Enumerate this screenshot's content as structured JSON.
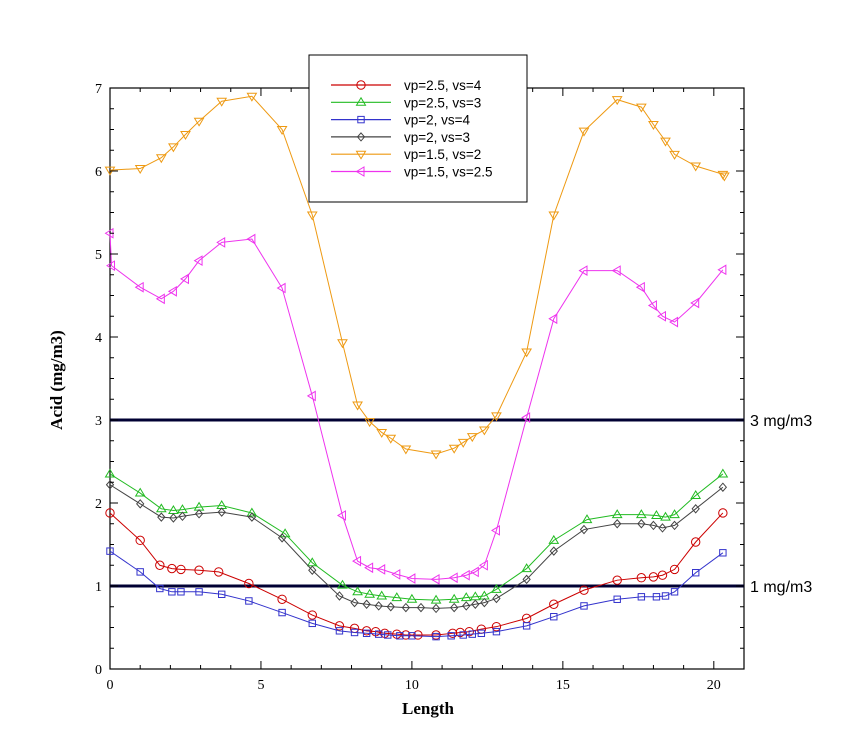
{
  "chart_data": {
    "type": "line",
    "title": "",
    "xlabel": "Length",
    "ylabel": "Acid (mg/m3)",
    "xlim": [
      0,
      21
    ],
    "ylim": [
      0,
      7
    ],
    "xticks": [
      "0",
      "5",
      "10",
      "15",
      "20"
    ],
    "yticks": [
      "0",
      "1",
      "2",
      "3",
      "4",
      "5",
      "6",
      "7"
    ],
    "reference_lines": [
      {
        "value": 3,
        "label": "3 mg/m3"
      },
      {
        "value": 1,
        "label": "1 mg/m3"
      }
    ],
    "series": [
      {
        "name": "vp=2.5, vs=4",
        "color": "#cc0000",
        "marker": "circle",
        "points": [
          [
            0,
            1.88
          ],
          [
            1,
            1.55
          ],
          [
            1.65,
            1.25
          ],
          [
            2.05,
            1.21
          ],
          [
            2.35,
            1.2
          ],
          [
            2.95,
            1.19
          ],
          [
            3.6,
            1.17
          ],
          [
            4.6,
            1.03
          ],
          [
            5.7,
            0.84
          ],
          [
            6.7,
            0.65
          ],
          [
            7.6,
            0.52
          ],
          [
            8.1,
            0.49
          ],
          [
            8.5,
            0.46
          ],
          [
            8.8,
            0.45
          ],
          [
            9.1,
            0.43
          ],
          [
            9.5,
            0.42
          ],
          [
            9.8,
            0.41
          ],
          [
            10.2,
            0.41
          ],
          [
            10.8,
            0.41
          ],
          [
            11.35,
            0.43
          ],
          [
            11.6,
            0.44
          ],
          [
            11.9,
            0.45
          ],
          [
            12.3,
            0.48
          ],
          [
            12.8,
            0.51
          ],
          [
            13.8,
            0.61
          ],
          [
            14.7,
            0.78
          ],
          [
            15.7,
            0.95
          ],
          [
            16.8,
            1.07
          ],
          [
            17.6,
            1.1
          ],
          [
            18,
            1.11
          ],
          [
            18.3,
            1.13
          ],
          [
            18.7,
            1.2
          ],
          [
            19.4,
            1.53
          ],
          [
            20.3,
            1.88
          ]
        ]
      },
      {
        "name": "vp=2.5, vs=3",
        "color": "#22bb22",
        "marker": "triangle-up",
        "points": [
          [
            0,
            2.35
          ],
          [
            1,
            2.12
          ],
          [
            1.7,
            1.93
          ],
          [
            2.1,
            1.91
          ],
          [
            2.4,
            1.92
          ],
          [
            2.95,
            1.95
          ],
          [
            3.7,
            1.97
          ],
          [
            4.7,
            1.88
          ],
          [
            5.8,
            1.63
          ],
          [
            6.7,
            1.28
          ],
          [
            7.7,
            1.01
          ],
          [
            8.2,
            0.93
          ],
          [
            8.6,
            0.9
          ],
          [
            9,
            0.88
          ],
          [
            9.5,
            0.86
          ],
          [
            10,
            0.84
          ],
          [
            10.8,
            0.83
          ],
          [
            11.4,
            0.84
          ],
          [
            11.8,
            0.86
          ],
          [
            12.1,
            0.87
          ],
          [
            12.4,
            0.88
          ],
          [
            12.8,
            0.96
          ],
          [
            13.8,
            1.21
          ],
          [
            14.7,
            1.55
          ],
          [
            15.8,
            1.8
          ],
          [
            16.8,
            1.86
          ],
          [
            17.6,
            1.86
          ],
          [
            18.1,
            1.85
          ],
          [
            18.4,
            1.83
          ],
          [
            18.7,
            1.86
          ],
          [
            19.4,
            2.09
          ],
          [
            20.3,
            2.35
          ]
        ]
      },
      {
        "name": "vp=2, vs=4",
        "color": "#3333cc",
        "marker": "square",
        "points": [
          [
            0,
            1.42
          ],
          [
            1,
            1.17
          ],
          [
            1.65,
            0.97
          ],
          [
            2.05,
            0.93
          ],
          [
            2.35,
            0.93
          ],
          [
            2.95,
            0.93
          ],
          [
            3.7,
            0.9
          ],
          [
            4.6,
            0.82
          ],
          [
            5.7,
            0.68
          ],
          [
            6.7,
            0.55
          ],
          [
            7.6,
            0.46
          ],
          [
            8.1,
            0.44
          ],
          [
            8.5,
            0.43
          ],
          [
            8.9,
            0.42
          ],
          [
            9.2,
            0.41
          ],
          [
            9.6,
            0.4
          ],
          [
            10,
            0.4
          ],
          [
            10.8,
            0.39
          ],
          [
            11.3,
            0.4
          ],
          [
            11.7,
            0.41
          ],
          [
            12,
            0.42
          ],
          [
            12.3,
            0.43
          ],
          [
            12.8,
            0.45
          ],
          [
            13.8,
            0.52
          ],
          [
            14.7,
            0.63
          ],
          [
            15.7,
            0.76
          ],
          [
            16.8,
            0.84
          ],
          [
            17.6,
            0.87
          ],
          [
            18.1,
            0.87
          ],
          [
            18.4,
            0.88
          ],
          [
            18.7,
            0.93
          ],
          [
            19.4,
            1.16
          ],
          [
            20.3,
            1.4
          ]
        ]
      },
      {
        "name": "vp=2, vs=3",
        "color": "#444444",
        "marker": "diamond",
        "points": [
          [
            0,
            2.22
          ],
          [
            1,
            1.99
          ],
          [
            1.7,
            1.83
          ],
          [
            2.1,
            1.82
          ],
          [
            2.4,
            1.84
          ],
          [
            2.95,
            1.87
          ],
          [
            3.7,
            1.89
          ],
          [
            4.7,
            1.83
          ],
          [
            5.7,
            1.58
          ],
          [
            6.7,
            1.19
          ],
          [
            7.6,
            0.88
          ],
          [
            8.1,
            0.8
          ],
          [
            8.5,
            0.78
          ],
          [
            8.9,
            0.76
          ],
          [
            9.3,
            0.75
          ],
          [
            9.8,
            0.74
          ],
          [
            10.3,
            0.74
          ],
          [
            10.8,
            0.73
          ],
          [
            11.4,
            0.74
          ],
          [
            11.8,
            0.76
          ],
          [
            12.1,
            0.78
          ],
          [
            12.4,
            0.8
          ],
          [
            12.8,
            0.85
          ],
          [
            13.8,
            1.08
          ],
          [
            14.7,
            1.42
          ],
          [
            15.7,
            1.68
          ],
          [
            16.8,
            1.75
          ],
          [
            17.6,
            1.75
          ],
          [
            18,
            1.73
          ],
          [
            18.3,
            1.7
          ],
          [
            18.7,
            1.73
          ],
          [
            19.4,
            1.93
          ],
          [
            20.3,
            2.19
          ]
        ]
      },
      {
        "name": "vp=1.5, vs=2",
        "color": "#ee9911",
        "marker": "triangle-down",
        "points": [
          [
            0,
            6.01
          ],
          [
            1,
            6.03
          ],
          [
            1.7,
            6.16
          ],
          [
            2.1,
            6.29
          ],
          [
            2.5,
            6.44
          ],
          [
            2.95,
            6.6
          ],
          [
            3.7,
            6.84
          ],
          [
            4.7,
            6.9
          ],
          [
            5.7,
            6.5
          ],
          [
            6.7,
            5.47
          ],
          [
            7.7,
            3.93
          ],
          [
            8.2,
            3.18
          ],
          [
            8.6,
            2.98
          ],
          [
            9,
            2.85
          ],
          [
            9.3,
            2.78
          ],
          [
            9.8,
            2.65
          ],
          [
            10.8,
            2.59
          ],
          [
            11.4,
            2.66
          ],
          [
            11.7,
            2.73
          ],
          [
            12,
            2.8
          ],
          [
            12.4,
            2.88
          ],
          [
            12.8,
            3.05
          ],
          [
            13.8,
            3.82
          ],
          [
            14.7,
            5.47
          ],
          [
            15.7,
            6.48
          ],
          [
            16.8,
            6.86
          ],
          [
            17.6,
            6.77
          ],
          [
            18,
            6.56
          ],
          [
            18.4,
            6.36
          ],
          [
            18.7,
            6.2
          ],
          [
            19.4,
            6.06
          ],
          [
            20.3,
            5.96
          ],
          [
            20.35,
            5.94
          ]
        ]
      },
      {
        "name": "vp=1.5, vs=2.5",
        "color": "#ee33ee",
        "marker": "triangle-left",
        "points": [
          [
            0,
            5.25
          ],
          [
            0.05,
            4.86
          ],
          [
            1,
            4.6
          ],
          [
            1.7,
            4.46
          ],
          [
            2.1,
            4.55
          ],
          [
            2.5,
            4.7
          ],
          [
            2.95,
            4.92
          ],
          [
            3.7,
            5.14
          ],
          [
            4.7,
            5.18
          ],
          [
            5.7,
            4.59
          ],
          [
            6.7,
            3.29
          ],
          [
            7.7,
            1.85
          ],
          [
            8.2,
            1.3
          ],
          [
            8.6,
            1.22
          ],
          [
            9,
            1.2
          ],
          [
            9.5,
            1.14
          ],
          [
            10,
            1.09
          ],
          [
            10.8,
            1.08
          ],
          [
            11.4,
            1.1
          ],
          [
            11.8,
            1.13
          ],
          [
            12.1,
            1.17
          ],
          [
            12.4,
            1.25
          ],
          [
            12.8,
            1.67
          ],
          [
            13.8,
            3.03
          ],
          [
            14.7,
            4.22
          ],
          [
            15.7,
            4.8
          ],
          [
            16.8,
            4.8
          ],
          [
            17.6,
            4.6
          ],
          [
            18,
            4.38
          ],
          [
            18.3,
            4.25
          ],
          [
            18.7,
            4.18
          ],
          [
            19.4,
            4.41
          ],
          [
            20.3,
            4.81
          ]
        ]
      }
    ]
  }
}
